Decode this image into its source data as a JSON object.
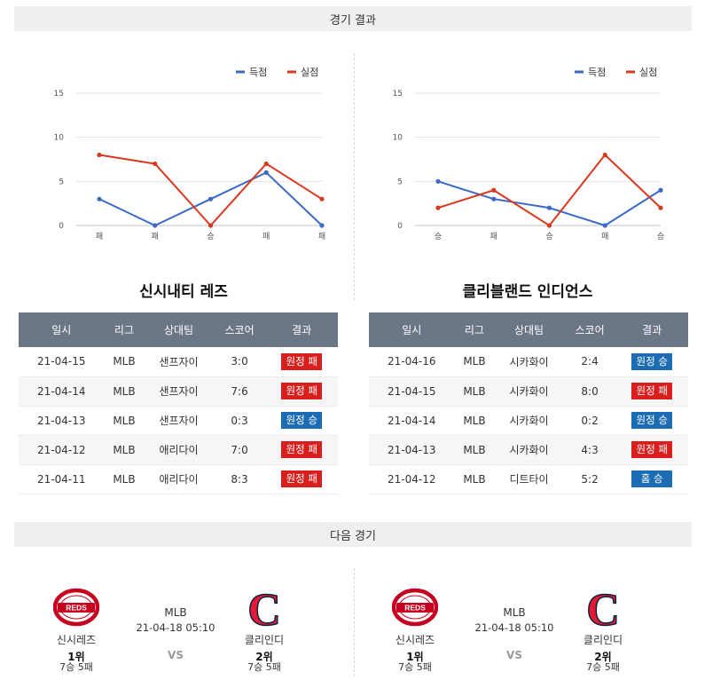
{
  "sections": {
    "results_title": "경기 결과",
    "next_title": "다음 경기"
  },
  "legend": {
    "scored": "득점",
    "allowed": "실점",
    "scored_color": "#3b69c5",
    "allowed_color": "#d8391f"
  },
  "chart_data": [
    {
      "type": "line",
      "categories": [
        "패",
        "패",
        "승",
        "패",
        "패"
      ],
      "series": [
        {
          "name": "득점",
          "values": [
            3,
            0,
            3,
            6,
            0
          ]
        },
        {
          "name": "실점",
          "values": [
            8,
            7,
            0,
            7,
            3
          ]
        }
      ],
      "yticks": [
        0,
        5,
        10,
        15
      ],
      "ylim": [
        0,
        15
      ],
      "grid": true,
      "legend_position": "top-right"
    },
    {
      "type": "line",
      "categories": [
        "승",
        "패",
        "승",
        "패",
        "승"
      ],
      "series": [
        {
          "name": "득점",
          "values": [
            5,
            3,
            2,
            0,
            4
          ]
        },
        {
          "name": "실점",
          "values": [
            2,
            4,
            0,
            8,
            2
          ]
        }
      ],
      "yticks": [
        0,
        5,
        10,
        15
      ],
      "ylim": [
        0,
        15
      ],
      "grid": true,
      "legend_position": "top-right"
    }
  ],
  "tables": [
    {
      "team": "신시내티 레즈",
      "headers": [
        "일시",
        "리그",
        "상대팀",
        "스코어",
        "결과"
      ],
      "rows": [
        {
          "date": "21-04-15",
          "league": "MLB",
          "opponent": "샌프자이",
          "score": "3:0",
          "result": "원정 패",
          "win": false
        },
        {
          "date": "21-04-14",
          "league": "MLB",
          "opponent": "샌프자이",
          "score": "7:6",
          "result": "원정 패",
          "win": false
        },
        {
          "date": "21-04-13",
          "league": "MLB",
          "opponent": "샌프자이",
          "score": "0:3",
          "result": "원정 승",
          "win": true
        },
        {
          "date": "21-04-12",
          "league": "MLB",
          "opponent": "애리다이",
          "score": "7:0",
          "result": "원정 패",
          "win": false
        },
        {
          "date": "21-04-11",
          "league": "MLB",
          "opponent": "애리다이",
          "score": "8:3",
          "result": "원정 패",
          "win": false
        }
      ]
    },
    {
      "team": "클리블랜드 인디언스",
      "headers": [
        "일시",
        "리그",
        "상대팀",
        "스코어",
        "결과"
      ],
      "rows": [
        {
          "date": "21-04-16",
          "league": "MLB",
          "opponent": "시카화이",
          "score": "2:4",
          "result": "원정 승",
          "win": true
        },
        {
          "date": "21-04-15",
          "league": "MLB",
          "opponent": "시카화이",
          "score": "8:0",
          "result": "원정 패",
          "win": false
        },
        {
          "date": "21-04-14",
          "league": "MLB",
          "opponent": "시카화이",
          "score": "0:2",
          "result": "원정 승",
          "win": true
        },
        {
          "date": "21-04-13",
          "league": "MLB",
          "opponent": "시카화이",
          "score": "4:3",
          "result": "원정 패",
          "win": false
        },
        {
          "date": "21-04-12",
          "league": "MLB",
          "opponent": "디트타이",
          "score": "5:2",
          "result": "홈 승",
          "win": true
        }
      ]
    }
  ],
  "matches": [
    {
      "league": "MLB",
      "datetime": "21-04-18 05:10",
      "vs": "VS",
      "home": {
        "name": "신시레즈",
        "rank": "1위",
        "record": "7승 5패",
        "logo_text": "REDS"
      },
      "away": {
        "name": "클리인디",
        "rank": "2위",
        "record": "7승 5패",
        "logo_text": "C"
      }
    },
    {
      "league": "MLB",
      "datetime": "21-04-18 05:10",
      "vs": "VS",
      "home": {
        "name": "신시레즈",
        "rank": "1위",
        "record": "7승 5패",
        "logo_text": "REDS"
      },
      "away": {
        "name": "클리인디",
        "rank": "2위",
        "record": "7승 5패",
        "logo_text": "C"
      }
    }
  ]
}
